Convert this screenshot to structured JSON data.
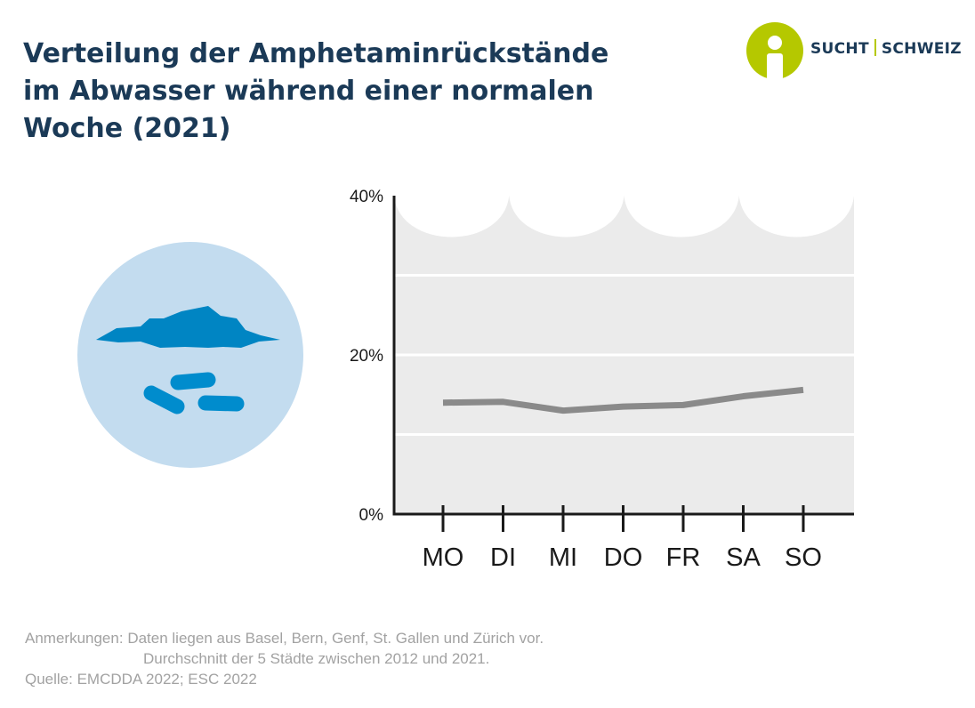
{
  "header": {
    "title_lines": [
      "Verteilung der Amphetaminrückstände",
      "im Abwasser während einer normalen",
      "Woche (2021)"
    ]
  },
  "logo": {
    "left": "SUCHT",
    "right": "SCHWEIZ",
    "icon": "sucht-schweiz-person-icon",
    "colors": {
      "mark": "#b5c800",
      "text": "#1b3a57"
    }
  },
  "illustration": {
    "icon": "wastewater-pills-icon",
    "colors": {
      "circle": "#c3dcef",
      "water": "#0085c3",
      "pills": "#008ccd"
    }
  },
  "chart_data": {
    "type": "line",
    "categories": [
      "MO",
      "DI",
      "MI",
      "DO",
      "FR",
      "SA",
      "SO"
    ],
    "series": [
      {
        "values": [
          14.0,
          14.1,
          13.0,
          13.5,
          13.7,
          14.8,
          15.6
        ]
      }
    ],
    "xlabel": "",
    "ylabel": "",
    "ylim": [
      0,
      40
    ],
    "yticks": [
      0,
      10,
      20,
      30,
      40
    ],
    "ytick_labels": [
      "0%",
      "20%",
      "40%"
    ],
    "grid": true,
    "colors": {
      "line": "#8a8a8a",
      "plot_background": "#ebebeb",
      "axis": "#1a1a1a"
    }
  },
  "footer": {
    "notes_label": "Anmerkungen:",
    "notes_line1": "Daten liegen aus Basel, Bern, Genf, St. Gallen und Zürich vor.",
    "notes_line2": "Durchschnitt der 5 Städte zwischen 2012 und 2021.",
    "source": "Quelle: EMCDDA 2022; ESC 2022"
  }
}
